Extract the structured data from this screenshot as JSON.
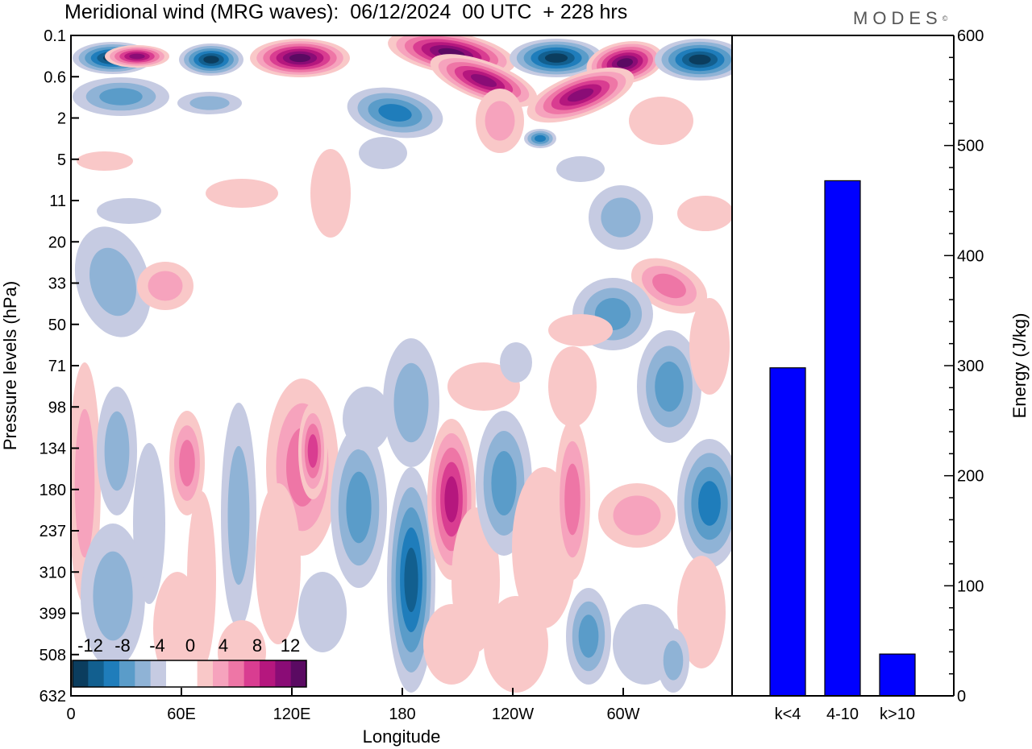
{
  "title": "Meridional wind (MRG waves):  06/12/2024  00 UTC  + 228 hrs",
  "logo": {
    "text": "MODES",
    "mark": "©"
  },
  "chart_data": [
    {
      "type": "heatmap",
      "xlabel": "Longitude",
      "ylabel": "Pressure levels (hPa)",
      "x_ticks": [
        "0",
        "60E",
        "120E",
        "180",
        "120W",
        "60W"
      ],
      "y_ticks": [
        "0.1",
        "0.6",
        "2",
        "5",
        "11",
        "20",
        "33",
        "50",
        "71",
        "98",
        "134",
        "180",
        "237",
        "310",
        "399",
        "508",
        "632"
      ],
      "colorbar": {
        "labels": [
          "-12",
          "-8",
          "-4",
          "0",
          "4",
          "8",
          "12"
        ],
        "colors": [
          "#0b3d5e",
          "#125f8f",
          "#1f7dbb",
          "#5a9cc9",
          "#8fb3d6",
          "#c6cbe2",
          "#ffffff",
          "#ffffff",
          "#f9c8c8",
          "#f6a3bd",
          "#ee76a6",
          "#d93d91",
          "#b5177e",
          "#8a0c76",
          "#5a0a62"
        ]
      }
    },
    {
      "type": "bar",
      "categories": [
        "k<4",
        "4-10",
        "k>10"
      ],
      "values": [
        298,
        468,
        38
      ],
      "ylabel": "Energy (J/kg)",
      "ylim": [
        0,
        600
      ],
      "y_ticks": [
        "0",
        "100",
        "200",
        "300",
        "400",
        "500",
        "600"
      ],
      "bar_color": "#0000ff"
    }
  ]
}
